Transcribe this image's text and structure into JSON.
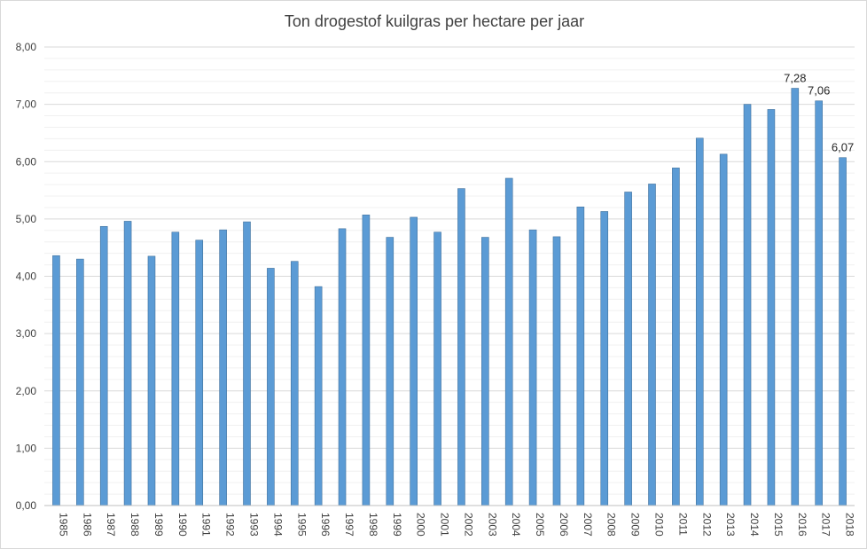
{
  "chart_data": {
    "type": "bar",
    "title": "Ton drogestof kuilgras per hectare per jaar",
    "xlabel": "",
    "ylabel": "",
    "ylim": [
      0,
      8
    ],
    "y_ticks": [
      "0,00",
      "1,00",
      "2,00",
      "3,00",
      "4,00",
      "5,00",
      "6,00",
      "7,00",
      "8,00"
    ],
    "grid": true,
    "legend": "none",
    "bar_color": "#5b9bd5",
    "categories": [
      "1985",
      "1986",
      "1987",
      "1988",
      "1989",
      "1990",
      "1991",
      "1992",
      "1993",
      "1994",
      "1995",
      "1996",
      "1997",
      "1998",
      "1999",
      "2000",
      "2001",
      "2002",
      "2003",
      "2004",
      "2005",
      "2006",
      "2007",
      "2008",
      "2009",
      "2010",
      "2011",
      "2012",
      "2013",
      "2014",
      "2015",
      "2016",
      "2017",
      "2018"
    ],
    "values": [
      4.36,
      4.3,
      4.87,
      4.96,
      4.35,
      4.77,
      4.63,
      4.81,
      4.95,
      4.14,
      4.26,
      3.82,
      4.83,
      5.07,
      4.68,
      5.03,
      4.77,
      5.53,
      4.68,
      5.71,
      4.81,
      4.69,
      5.21,
      5.13,
      5.47,
      5.61,
      5.89,
      6.41,
      6.13,
      7.0,
      6.91,
      7.28,
      7.06,
      6.07
    ],
    "data_labels": [
      {
        "category": "2016",
        "text": "7,28"
      },
      {
        "category": "2017",
        "text": "7,06"
      },
      {
        "category": "2018",
        "text": "6,07"
      }
    ]
  }
}
